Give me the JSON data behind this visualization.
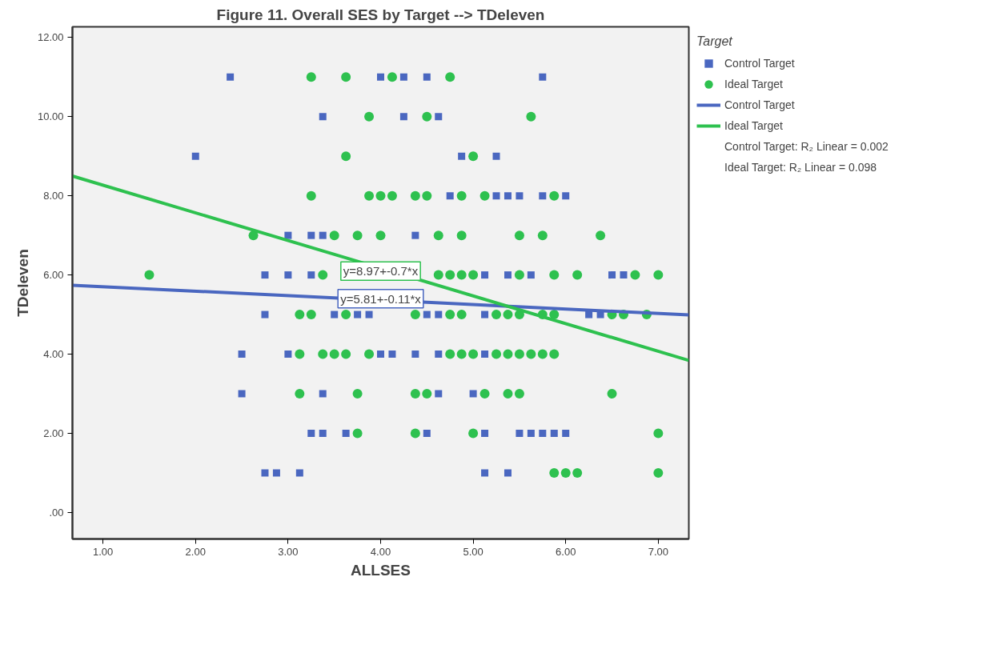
{
  "chart_data": {
    "type": "scatter",
    "title": "Figure 11. Overall SES by Target --> TDeleven",
    "xlabel": "ALLSES",
    "ylabel": "TDeleven",
    "legend_title": "Target",
    "xlim": [
      0.67,
      7.33
    ],
    "ylim": [
      -0.67,
      12.27
    ],
    "xticks": [
      {
        "value": 1,
        "label": "1.00"
      },
      {
        "value": 2,
        "label": "2.00"
      },
      {
        "value": 3,
        "label": "3.00"
      },
      {
        "value": 4,
        "label": "4.00"
      },
      {
        "value": 5,
        "label": "5.00"
      },
      {
        "value": 6,
        "label": "6.00"
      },
      {
        "value": 7,
        "label": "7.00"
      }
    ],
    "yticks": [
      {
        "value": 0,
        "label": ".00"
      },
      {
        "value": 2,
        "label": "2.00"
      },
      {
        "value": 4,
        "label": "4.00"
      },
      {
        "value": 6,
        "label": "6.00"
      },
      {
        "value": 8,
        "label": "8.00"
      },
      {
        "value": 10,
        "label": "10.00"
      },
      {
        "value": 12,
        "label": "12.00"
      }
    ],
    "grid": false,
    "legend": "right",
    "series": [
      {
        "name": "Control Target",
        "type": "scatter",
        "marker": "square",
        "color": "#4a67c0",
        "x": [
          2.375,
          4,
          4.25,
          4.5,
          5.75,
          3.375,
          4.25,
          4.625,
          2,
          4.875,
          5.25,
          4.75,
          5.25,
          5.375,
          5.5,
          5.75,
          6,
          3,
          3.25,
          3.375,
          4.375,
          2.75,
          3,
          3.25,
          5.125,
          5.375,
          5.625,
          6.5,
          6.625,
          2.75,
          3.5,
          3.75,
          3.875,
          4.5,
          4.625,
          5.125,
          6.25,
          6.375,
          2.5,
          3,
          4,
          4.125,
          4.375,
          4.625,
          5.125,
          2.5,
          3.375,
          4.625,
          5,
          3.25,
          3.375,
          3.625,
          4.5,
          5.125,
          5.5,
          5.625,
          5.75,
          5.875,
          6,
          2.75,
          2.875,
          3.125,
          5.125,
          5.375
        ],
        "values": [
          11,
          11,
          11,
          11,
          11,
          10,
          10,
          10,
          9,
          9,
          9,
          8,
          8,
          8,
          8,
          8,
          8,
          7,
          7,
          7,
          7,
          6,
          6,
          6,
          6,
          6,
          6,
          6,
          6,
          5,
          5,
          5,
          5,
          5,
          5,
          5,
          5,
          5,
          4,
          4,
          4,
          4,
          4,
          4,
          4,
          3,
          3,
          3,
          3,
          2,
          2,
          2,
          2,
          2,
          2,
          2,
          2,
          2,
          2,
          1,
          1,
          1,
          1,
          1
        ]
      },
      {
        "name": "Ideal Target",
        "type": "scatter",
        "marker": "circle",
        "color": "#2ec14f",
        "x": [
          3.25,
          3.625,
          4.125,
          4.75,
          3.875,
          4.5,
          5.625,
          3.625,
          5,
          3.25,
          3.875,
          4,
          4.125,
          4.375,
          4.5,
          4.875,
          5.125,
          5.875,
          2.625,
          3.5,
          3.75,
          4,
          4.625,
          4.875,
          5.5,
          5.75,
          6.375,
          1.5,
          3.375,
          4.625,
          4.75,
          4.875,
          5,
          5.5,
          5.875,
          6.125,
          6.75,
          7,
          3.125,
          3.25,
          3.625,
          4.375,
          4.75,
          4.875,
          5.25,
          5.375,
          5.5,
          5.75,
          5.875,
          6.5,
          6.625,
          6.875,
          3.125,
          3.375,
          3.5,
          3.625,
          3.875,
          4.75,
          4.875,
          5,
          5.25,
          5.375,
          5.5,
          5.625,
          5.75,
          5.875,
          3.125,
          3.75,
          4.375,
          4.5,
          5.125,
          5.375,
          5.5,
          6.5,
          3.75,
          4.375,
          5,
          7,
          5.875,
          6,
          6.125,
          7
        ],
        "values": [
          11,
          11,
          11,
          11,
          10,
          10,
          10,
          9,
          9,
          8,
          8,
          8,
          8,
          8,
          8,
          8,
          8,
          8,
          7,
          7,
          7,
          7,
          7,
          7,
          7,
          7,
          7,
          6,
          6,
          6,
          6,
          6,
          6,
          6,
          6,
          6,
          6,
          6,
          5,
          5,
          5,
          5,
          5,
          5,
          5,
          5,
          5,
          5,
          5,
          5,
          5,
          5,
          4,
          4,
          4,
          4,
          4,
          4,
          4,
          4,
          4,
          4,
          4,
          4,
          4,
          4,
          3,
          3,
          3,
          3,
          3,
          3,
          3,
          3,
          2,
          2,
          2,
          2,
          1,
          1,
          1,
          1
        ]
      },
      {
        "name": "Control Target",
        "type": "line",
        "line_style": "solid",
        "color": "#4a67c0",
        "x": [
          0.67,
          7.33
        ],
        "values": [
          5.74,
          4.99
        ]
      },
      {
        "name": "Ideal Target",
        "type": "line",
        "line_style": "solid",
        "color": "#2ec14f",
        "x": [
          0.67,
          7.33
        ],
        "values": [
          8.5,
          3.84
        ]
      }
    ],
    "annotations": [
      {
        "text": "y=5.81+-0.11*x",
        "x": 4.0,
        "y": 5.4
      },
      {
        "text": "y=8.97+-0.7*x",
        "x": 4.0,
        "y": 6.1
      },
      "Control Target: R₂ Linear = 0.002",
      "Ideal Target: R₂ Linear = 0.098"
    ]
  }
}
